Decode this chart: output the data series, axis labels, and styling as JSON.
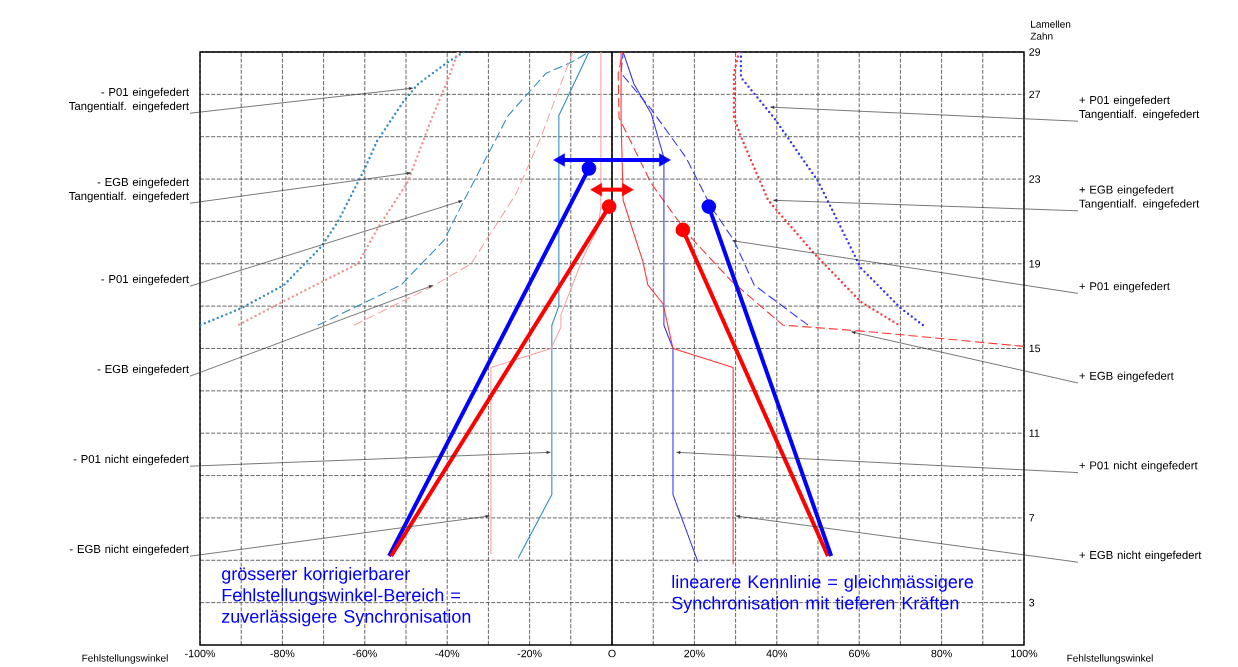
{
  "chart_data": {
    "type": "line",
    "xlabel": "Fehlstellungswinkel",
    "ylabel": "Lamellen Zahn",
    "xlim": [
      -100,
      100
    ],
    "ylim": [
      1,
      29
    ],
    "xticks": [
      {
        "value": -100,
        "label": "-100%"
      },
      {
        "value": -90,
        "label": null
      },
      {
        "value": -80,
        "label": "-80%"
      },
      {
        "value": -70,
        "label": null
      },
      {
        "value": -60,
        "label": "-60%"
      },
      {
        "value": -50,
        "label": null
      },
      {
        "value": -40,
        "label": "-40%"
      },
      {
        "value": -30,
        "label": null
      },
      {
        "value": -20,
        "label": "-20%"
      },
      {
        "value": -10,
        "label": null
      },
      {
        "value": 0,
        "label": "O"
      },
      {
        "value": 10,
        "label": null
      },
      {
        "value": 20,
        "label": "20%"
      },
      {
        "value": 30,
        "label": null
      },
      {
        "value": 40,
        "label": "40%"
      },
      {
        "value": 50,
        "label": null
      },
      {
        "value": 60,
        "label": "60%"
      },
      {
        "value": 70,
        "label": null
      },
      {
        "value": 80,
        "label": "80%"
      },
      {
        "value": 90,
        "label": null
      },
      {
        "value": 100,
        "label": "100%"
      }
    ],
    "yticks": [
      3,
      {
        "value": 5,
        "label": null
      },
      7,
      {
        "value": 9,
        "label": null
      },
      11,
      {
        "value": 13,
        "label": null
      },
      15,
      {
        "value": 17,
        "label": null
      },
      19,
      {
        "value": 21,
        "label": null
      },
      23,
      {
        "value": 25,
        "label": null
      },
      27,
      29
    ],
    "grid": true,
    "ref_lines": [
      {
        "axis": "x",
        "value": 0,
        "color": "#000000"
      }
    ],
    "series": [
      {
        "color": "#2e8bc0",
        "line_style": "dotted",
        "x": [
          -36,
          -40,
          -47,
          -50.5,
          -57,
          -60,
          -66.5,
          -70.6,
          -79.6,
          -90,
          -100
        ],
        "values": [
          29,
          28.5,
          27.5,
          26.7,
          24.8,
          23.5,
          21,
          19.8,
          18,
          16.9,
          16.1
        ]
      },
      {
        "color": "#f49090",
        "line_style": "dotted",
        "x": [
          -37.4,
          -39.8,
          -43.9,
          -49.5,
          -56.8,
          -61.7,
          -69.9,
          -81,
          -90.8
        ],
        "values": [
          29,
          27.7,
          25.8,
          22.9,
          20.7,
          19,
          18.2,
          17.1,
          16.1
        ]
      },
      {
        "color": "#2e8bc0",
        "line_style": "dashed",
        "x": [
          -5.6,
          -10,
          -16,
          -25.2,
          -35.9,
          -40.8,
          -51.2,
          -71.4
        ],
        "values": [
          29,
          28.5,
          28,
          26,
          22,
          20.1,
          18,
          16.1
        ]
      },
      {
        "color": "#f8a0a0",
        "line_style": "dashed",
        "x": [
          -9.5,
          -17.2,
          -23.3,
          -34.2,
          -43.9,
          -62.6
        ],
        "values": [
          29,
          25,
          22.3,
          19,
          17.9,
          16.1
        ]
      },
      {
        "color": "#2e8bc0",
        "line_style": "solid",
        "x": [
          -5.6,
          -12.9,
          -12.9,
          -14.6,
          -14.6,
          -22.8
        ],
        "values": [
          29,
          26,
          17,
          16.1,
          8.1,
          5.1
        ]
      },
      {
        "color": "#f8a0a0",
        "line_style": "solid",
        "x": [
          -2.7,
          -2.7,
          -3.4,
          -7,
          -12.4,
          -12.4,
          -14.8,
          -29.4,
          -29.4
        ],
        "values": [
          29,
          21.7,
          20.7,
          19.3,
          16.6,
          16,
          15,
          14.1,
          5.3
        ]
      },
      {
        "color": "#3333ff",
        "line_style": "dotted",
        "x": [
          31.3,
          31.3,
          39.3,
          50,
          60.4,
          70.1,
          75.5
        ],
        "values": [
          29,
          27.8,
          25.9,
          22.9,
          18.8,
          16.9,
          16.1
        ]
      },
      {
        "color": "#ff3333",
        "line_style": "dotted",
        "x": [
          30.8,
          29.6,
          29.6,
          31.3,
          37.9,
          49,
          60.4,
          69.7
        ],
        "values": [
          29,
          28,
          25.9,
          25,
          22,
          19.5,
          17.2,
          16.1
        ]
      },
      {
        "color": "#3333ff",
        "line_style": "dashed",
        "x": [
          2.7,
          2.2,
          9.5,
          18,
          24,
          29.6,
          34.5,
          47.6
        ],
        "values": [
          29,
          28,
          26.3,
          24,
          21.7,
          20.1,
          18,
          16.1
        ]
      },
      {
        "color": "#ff3333",
        "line_style": "dashed",
        "x": [
          2.7,
          1.5,
          1.7,
          9.5,
          18.4,
          28.9,
          41.5,
          62,
          100
        ],
        "values": [
          29,
          28,
          25.9,
          22.8,
          20.4,
          18.2,
          16.1,
          15.8,
          15.1
        ]
      },
      {
        "color": "#3333ff",
        "line_style": "solid",
        "x": [
          2.7,
          5.3,
          9.5,
          12.6,
          12.6,
          12.6,
          14.8,
          14.8,
          14.8,
          20.9
        ],
        "values": [
          29,
          27.5,
          26.1,
          24,
          17.1,
          16.1,
          15,
          14.1,
          8.1,
          4.9
        ]
      },
      {
        "color": "#ff3333",
        "line_style": "solid",
        "x": [
          2.2,
          2.2,
          2.7,
          7.5,
          8.7,
          12.4,
          14.8,
          29.4,
          29.4
        ],
        "values": [
          29,
          25.9,
          22,
          19.1,
          18,
          17.1,
          15,
          14.1,
          4.8
        ]
      },
      {
        "color": "#0000ff",
        "line_style": "solid",
        "marker": "circle",
        "x": [
          -5.6,
          -54.1
        ],
        "values": [
          23.5,
          5.2
        ]
      },
      {
        "color": "#ff0000",
        "line_style": "solid",
        "marker": "circle",
        "x": [
          -0.7,
          -53.6
        ],
        "values": [
          21.7,
          5.2
        ]
      },
      {
        "color": "#ff0000",
        "line_style": "solid",
        "marker": "circle",
        "x": [
          17.2,
          52.4
        ],
        "values": [
          20.6,
          5.2
        ]
      },
      {
        "color": "#0000ff",
        "line_style": "solid",
        "marker": "circle",
        "x": [
          23.5,
          53.2
        ],
        "values": [
          21.7,
          5.2
        ]
      },
      {
        "color": "#0000ff",
        "line_style": "solid",
        "marker": "triangle",
        "x": [
          -12.4,
          12.4
        ],
        "values": [
          23.9,
          23.9
        ]
      },
      {
        "color": "#ff0000",
        "line_style": "solid",
        "marker": "triangle",
        "x": [
          -3.4,
          3.4
        ],
        "values": [
          22.5,
          22.5
        ]
      }
    ],
    "annotations": [
      {
        "text": "- P01 eingefedert Tangentialf. eingefedert",
        "x": -48,
        "y": 27.3
      },
      {
        "text": "- EGB eingefedert Tangentialf. eingefedert",
        "x": -48.5,
        "y": 23.3
      },
      {
        "text": "- P01 eingefedert",
        "x": -36,
        "y": 22
      },
      {
        "text": "- EGB eingefedert",
        "x": -43.2,
        "y": 18
      },
      {
        "text": "- P01 nicht eingefedert",
        "x": -14.6,
        "y": 10.1
      },
      {
        "text": "- EGB nicht eingefedert",
        "x": -29.4,
        "y": 7.1
      },
      {
        "text": "+ P01 eingefedert Tangentialf. eingefedert",
        "x": 38.1,
        "y": 26.4
      },
      {
        "text": "+ EGB eingefedert Tangentialf. eingefedert",
        "x": 38.8,
        "y": 22
      },
      {
        "text": "+ P01 eingefedert",
        "x": 28.9,
        "y": 20.1
      },
      {
        "text": "+ EGB eingefedert",
        "x": 57.8,
        "y": 15.8
      },
      {
        "text": "+ P01 nicht eingefedert",
        "x": 15.3,
        "y": 10.1
      },
      {
        "text": "+ EGB nicht eingefedert",
        "x": 29.8,
        "y": 7.1
      },
      "grösserer korrigierbarer Fehlstellungswinkel-Bereich = zuverlässigere Synchronisation",
      "linearere Kennlinie = gleichmässigere Synchronisation mit tieferen Kräften"
    ]
  }
}
